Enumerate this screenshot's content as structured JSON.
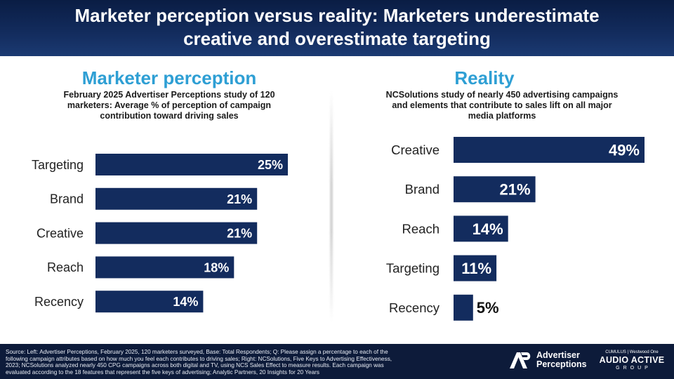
{
  "header": {
    "title_line1": "Marketer perception versus reality: Marketers underestimate",
    "title_line2": "creative and overestimate targeting"
  },
  "left": {
    "title": "Marketer perception",
    "subtitle_lines": [
      "February 2025 Advertiser Perceptions study of 120",
      "marketers: Average % of perception of campaign",
      "contribution toward driving sales"
    ]
  },
  "right": {
    "title": "Reality",
    "subtitle_lines": [
      "NCSolutions study of nearly 450 advertising campaigns",
      "and elements that contribute to sales lift on all major",
      "media platforms"
    ]
  },
  "chart_data": [
    {
      "type": "bar",
      "orientation": "horizontal",
      "title": "Marketer perception",
      "categories": [
        "Targeting",
        "Brand",
        "Creative",
        "Reach",
        "Recency"
      ],
      "values": [
        25,
        21,
        21,
        18,
        14
      ],
      "data_labels": [
        "25%",
        "21%",
        "21%",
        "18%",
        "14%"
      ],
      "xlim": [
        0,
        25
      ],
      "grid": false,
      "bar_color": "#132c5e"
    },
    {
      "type": "bar",
      "orientation": "horizontal",
      "title": "Reality",
      "categories": [
        "Creative",
        "Brand",
        "Reach",
        "Targeting",
        "Recency"
      ],
      "values": [
        49,
        21,
        14,
        11,
        5
      ],
      "data_labels": [
        "49%",
        "21%",
        "14%",
        "11%",
        "5%"
      ],
      "xlim": [
        0,
        49
      ],
      "grid": false,
      "bar_color": "#132c5e"
    }
  ],
  "footer": {
    "source_lines": [
      "Source: Left: Advertiser Perceptions, February 2025, 120 marketers surveyed, Base: Total Respondents; Q: Please assign a percentage to each of the",
      "following campaign attributes based on how much you feel each contributes to driving sales; Right: NCSolutions, Five Keys to Advertising Effectiveness,",
      "2023; NCSolutions analyzed nearly 450 CPG campaigns across both digital and TV, using NCS Sales Effect to measure results. Each campaign was",
      "evaluated according to the 18 features that represent the five keys of advertising; Analytic Partners, 20 Insights for 20 Years"
    ],
    "ap_logo_line1": "Advertiser",
    "ap_logo_line2": "Perceptions",
    "aag_top": "CUMULUS | Westwood One",
    "aag_main": "AUDIO ACTIVE",
    "aag_sub": "GROUP"
  },
  "colors": {
    "accent": "#2e9fd4",
    "bar": "#132c5e",
    "header_bg": "#0a1d44",
    "footer_bg": "#0d1b3a"
  }
}
